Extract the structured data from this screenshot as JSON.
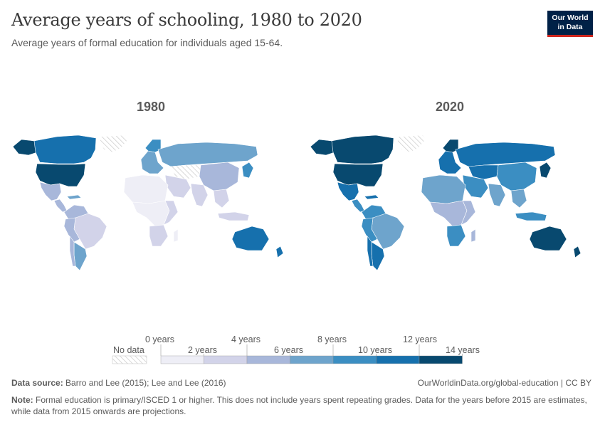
{
  "header": {
    "title": "Average years of schooling, 1980 to 2020",
    "subtitle": "Average years of formal education for individuals aged 15-64."
  },
  "logo": {
    "line1": "Our World",
    "line2": "in Data"
  },
  "maps": [
    {
      "year": "1980"
    },
    {
      "year": "2020"
    }
  ],
  "legend": {
    "no_data_label": "No data",
    "top_labels": [
      "0 years",
      "4 years",
      "8 years",
      "12 years"
    ],
    "bottom_labels": [
      "2 years",
      "6 years",
      "10 years",
      "14 years"
    ],
    "colors": [
      "#eeeef6",
      "#d2d3e9",
      "#a8b7da",
      "#6ea4cc",
      "#3b8ec2",
      "#1670ad",
      "#08496f"
    ],
    "no_data_color": "#dcdcdc"
  },
  "footer": {
    "source_label": "Data source:",
    "source_text": "Barro and Lee (2015); Lee and Lee (2016)",
    "url_text": "OurWorldinData.org/global-education | CC BY",
    "note_label": "Note:",
    "note_text": "Formal education is primary/ISCED 1 or higher. This does not include years spent repeating grades. Data for the years before 2015 are estimates, while data from 2015 onwards are projections."
  }
}
